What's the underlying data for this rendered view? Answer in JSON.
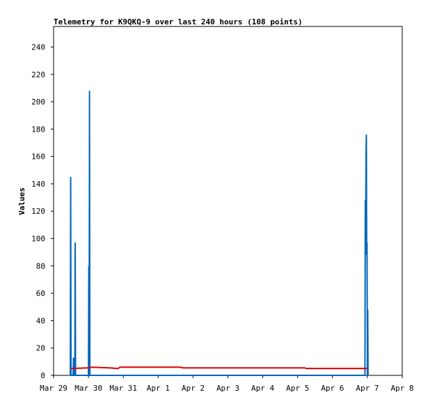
{
  "chart_data": {
    "type": "line",
    "title": "Telemetry for K9QKQ-9 over last 240 hours (108 points)",
    "y_label": "Values",
    "xlim": [
      0,
      10
    ],
    "xticks": [
      {
        "value": 0,
        "label": "Mar 29"
      },
      {
        "value": 1,
        "label": "Mar 30"
      },
      {
        "value": 2,
        "label": "Mar 31"
      },
      {
        "value": 3,
        "label": "Apr 1"
      },
      {
        "value": 4,
        "label": "Apr 2"
      },
      {
        "value": 5,
        "label": "Apr 3"
      },
      {
        "value": 6,
        "label": "Apr 4"
      },
      {
        "value": 7,
        "label": "Apr 5"
      },
      {
        "value": 8,
        "label": "Apr 6"
      },
      {
        "value": 9,
        "label": "Apr 7"
      },
      {
        "value": 10,
        "label": "Apr 8"
      }
    ],
    "ylim": [
      0,
      255
    ],
    "yticks": [
      0,
      20,
      40,
      60,
      80,
      100,
      120,
      140,
      160,
      180,
      200,
      220,
      240
    ],
    "series": [
      {
        "color": "#0066bb",
        "x": [
          0.48,
          0.49,
          0.5,
          0.56,
          0.57,
          0.58,
          0.61,
          0.62,
          0.63,
          1.0,
          1.01,
          1.02,
          1.03,
          1.04,
          8.93,
          8.94,
          8.95,
          8.96,
          8.97,
          8.98,
          8.99,
          9.0,
          9.01,
          9.02
        ],
        "values": [
          0,
          145,
          0,
          0,
          13,
          0,
          0,
          97,
          0,
          0,
          80,
          0,
          208,
          0,
          0,
          128,
          88,
          160,
          176,
          90,
          97,
          0,
          48,
          0
        ]
      },
      {
        "color": "#dd0000",
        "x": [
          0.5,
          1.0,
          1.1,
          1.6,
          1.85,
          1.9,
          3.65,
          3.7,
          7.2,
          7.25,
          9.0
        ],
        "values": [
          5,
          5.5,
          6,
          5.5,
          5,
          6,
          6,
          5.5,
          5.5,
          5,
          5
        ]
      }
    ]
  }
}
